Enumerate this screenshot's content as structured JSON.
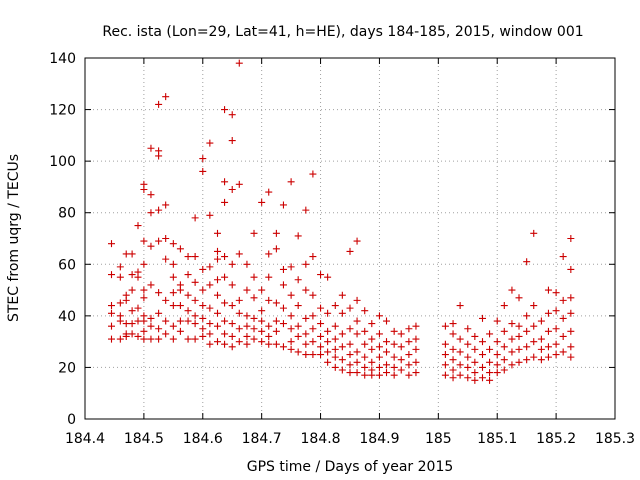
{
  "chart_data": {
    "type": "scatter",
    "title": "Rec. ista (Lon=29, Lat=41, h=HE), days 184-185, 2015, window 001",
    "xlabel": "GPS time / Days of year 2015",
    "ylabel": "STEC from uqrg / TECUs",
    "xlim": [
      184.4,
      185.3
    ],
    "ylim": [
      0,
      140
    ],
    "xticks": [
      "184.4",
      "184.5",
      "184.6",
      "184.7",
      "184.8",
      "184.9",
      "185",
      "185.1",
      "185.2",
      "185.3"
    ],
    "yticks": [
      "0",
      "20",
      "40",
      "60",
      "80",
      "100",
      "120",
      "140"
    ],
    "xtick_values": [
      184.4,
      184.5,
      184.6,
      184.7,
      184.8,
      184.9,
      185.0,
      185.1,
      185.2,
      185.3
    ],
    "ytick_values": [
      0,
      20,
      40,
      60,
      80,
      100,
      120,
      140
    ],
    "grid": true,
    "marker": "plus",
    "color": "#cc0000",
    "points": [
      [
        184.445,
        68
      ],
      [
        184.445,
        56
      ],
      [
        184.445,
        44
      ],
      [
        184.445,
        41
      ],
      [
        184.445,
        36
      ],
      [
        184.445,
        31
      ],
      [
        184.46,
        59
      ],
      [
        184.46,
        55
      ],
      [
        184.46,
        45
      ],
      [
        184.46,
        40
      ],
      [
        184.46,
        38
      ],
      [
        184.46,
        31
      ],
      [
        184.47,
        64
      ],
      [
        184.47,
        48
      ],
      [
        184.47,
        46
      ],
      [
        184.47,
        37
      ],
      [
        184.47,
        33
      ],
      [
        184.47,
        32
      ],
      [
        184.48,
        64
      ],
      [
        184.48,
        56
      ],
      [
        184.48,
        50
      ],
      [
        184.48,
        42
      ],
      [
        184.48,
        37
      ],
      [
        184.48,
        33
      ],
      [
        184.49,
        75
      ],
      [
        184.49,
        57
      ],
      [
        184.49,
        55
      ],
      [
        184.49,
        43
      ],
      [
        184.49,
        38
      ],
      [
        184.49,
        32
      ],
      [
        184.5,
        91
      ],
      [
        184.5,
        89
      ],
      [
        184.5,
        69
      ],
      [
        184.5,
        60
      ],
      [
        184.5,
        50
      ],
      [
        184.5,
        47
      ],
      [
        184.5,
        40
      ],
      [
        184.5,
        38
      ],
      [
        184.5,
        34
      ],
      [
        184.5,
        31
      ],
      [
        184.512,
        105
      ],
      [
        184.512,
        87
      ],
      [
        184.512,
        80
      ],
      [
        184.512,
        67
      ],
      [
        184.512,
        52
      ],
      [
        184.512,
        39
      ],
      [
        184.512,
        36
      ],
      [
        184.512,
        31
      ],
      [
        184.525,
        122
      ],
      [
        184.525,
        104
      ],
      [
        184.525,
        102
      ],
      [
        184.525,
        81
      ],
      [
        184.525,
        69
      ],
      [
        184.525,
        49
      ],
      [
        184.525,
        41
      ],
      [
        184.525,
        35
      ],
      [
        184.525,
        31
      ],
      [
        184.537,
        125
      ],
      [
        184.537,
        83
      ],
      [
        184.537,
        70
      ],
      [
        184.537,
        62
      ],
      [
        184.537,
        46
      ],
      [
        184.537,
        38
      ],
      [
        184.537,
        33
      ],
      [
        184.55,
        68
      ],
      [
        184.55,
        60
      ],
      [
        184.55,
        55
      ],
      [
        184.55,
        49
      ],
      [
        184.55,
        44
      ],
      [
        184.55,
        36
      ],
      [
        184.55,
        31
      ],
      [
        184.562,
        66
      ],
      [
        184.562,
        52
      ],
      [
        184.562,
        50
      ],
      [
        184.562,
        44
      ],
      [
        184.562,
        38
      ],
      [
        184.562,
        34
      ],
      [
        184.575,
        63
      ],
      [
        184.575,
        56
      ],
      [
        184.575,
        48
      ],
      [
        184.575,
        42
      ],
      [
        184.575,
        38
      ],
      [
        184.575,
        31
      ],
      [
        184.587,
        78
      ],
      [
        184.587,
        63
      ],
      [
        184.587,
        53
      ],
      [
        184.587,
        46
      ],
      [
        184.587,
        40
      ],
      [
        184.587,
        37
      ],
      [
        184.587,
        31
      ],
      [
        184.6,
        101
      ],
      [
        184.6,
        96
      ],
      [
        184.6,
        58
      ],
      [
        184.6,
        50
      ],
      [
        184.6,
        44
      ],
      [
        184.6,
        39
      ],
      [
        184.6,
        35
      ],
      [
        184.6,
        32
      ],
      [
        184.612,
        107
      ],
      [
        184.612,
        79
      ],
      [
        184.612,
        59
      ],
      [
        184.612,
        52
      ],
      [
        184.612,
        43
      ],
      [
        184.612,
        37
      ],
      [
        184.612,
        33
      ],
      [
        184.612,
        29
      ],
      [
        184.625,
        72
      ],
      [
        184.625,
        65
      ],
      [
        184.625,
        62
      ],
      [
        184.625,
        54
      ],
      [
        184.625,
        48
      ],
      [
        184.625,
        41
      ],
      [
        184.625,
        36
      ],
      [
        184.625,
        30
      ],
      [
        184.637,
        120
      ],
      [
        184.637,
        92
      ],
      [
        184.637,
        84
      ],
      [
        184.637,
        63
      ],
      [
        184.637,
        55
      ],
      [
        184.637,
        45
      ],
      [
        184.637,
        38
      ],
      [
        184.637,
        33
      ],
      [
        184.637,
        29
      ],
      [
        184.65,
        118
      ],
      [
        184.65,
        108
      ],
      [
        184.65,
        89
      ],
      [
        184.65,
        60
      ],
      [
        184.65,
        52
      ],
      [
        184.65,
        44
      ],
      [
        184.65,
        37
      ],
      [
        184.65,
        32
      ],
      [
        184.65,
        28
      ],
      [
        184.662,
        138
      ],
      [
        184.662,
        91
      ],
      [
        184.662,
        64
      ],
      [
        184.662,
        46
      ],
      [
        184.662,
        41
      ],
      [
        184.662,
        35
      ],
      [
        184.662,
        30
      ],
      [
        184.675,
        60
      ],
      [
        184.675,
        50
      ],
      [
        184.675,
        40
      ],
      [
        184.675,
        36
      ],
      [
        184.675,
        32
      ],
      [
        184.675,
        29
      ],
      [
        184.687,
        72
      ],
      [
        184.687,
        55
      ],
      [
        184.687,
        47
      ],
      [
        184.687,
        39
      ],
      [
        184.687,
        35
      ],
      [
        184.687,
        31
      ],
      [
        184.7,
        84
      ],
      [
        184.7,
        50
      ],
      [
        184.7,
        42
      ],
      [
        184.7,
        38
      ],
      [
        184.7,
        34
      ],
      [
        184.7,
        30
      ],
      [
        184.712,
        88
      ],
      [
        184.712,
        64
      ],
      [
        184.712,
        55
      ],
      [
        184.712,
        46
      ],
      [
        184.712,
        36
      ],
      [
        184.712,
        32
      ],
      [
        184.712,
        29
      ],
      [
        184.725,
        72
      ],
      [
        184.725,
        66
      ],
      [
        184.725,
        45
      ],
      [
        184.725,
        38
      ],
      [
        184.725,
        34
      ],
      [
        184.725,
        29
      ],
      [
        184.737,
        83
      ],
      [
        184.737,
        58
      ],
      [
        184.737,
        52
      ],
      [
        184.737,
        43
      ],
      [
        184.737,
        37
      ],
      [
        184.737,
        28
      ],
      [
        184.75,
        92
      ],
      [
        184.75,
        59
      ],
      [
        184.75,
        48
      ],
      [
        184.75,
        40
      ],
      [
        184.75,
        35
      ],
      [
        184.75,
        30
      ],
      [
        184.75,
        27
      ],
      [
        184.762,
        71
      ],
      [
        184.762,
        54
      ],
      [
        184.762,
        44
      ],
      [
        184.762,
        36
      ],
      [
        184.762,
        32
      ],
      [
        184.762,
        26
      ],
      [
        184.775,
        81
      ],
      [
        184.775,
        60
      ],
      [
        184.775,
        50
      ],
      [
        184.775,
        39
      ],
      [
        184.775,
        33
      ],
      [
        184.775,
        29
      ],
      [
        184.775,
        25
      ],
      [
        184.787,
        95
      ],
      [
        184.787,
        63
      ],
      [
        184.787,
        48
      ],
      [
        184.787,
        40
      ],
      [
        184.787,
        35
      ],
      [
        184.787,
        30
      ],
      [
        184.787,
        25
      ],
      [
        184.8,
        56
      ],
      [
        184.8,
        43
      ],
      [
        184.8,
        37
      ],
      [
        184.8,
        32
      ],
      [
        184.8,
        28
      ],
      [
        184.8,
        25
      ],
      [
        184.812,
        55
      ],
      [
        184.812,
        41
      ],
      [
        184.812,
        34
      ],
      [
        184.812,
        30
      ],
      [
        184.812,
        26
      ],
      [
        184.812,
        22
      ],
      [
        184.825,
        44
      ],
      [
        184.825,
        36
      ],
      [
        184.825,
        31
      ],
      [
        184.825,
        27
      ],
      [
        184.825,
        24
      ],
      [
        184.825,
        20
      ],
      [
        184.837,
        48
      ],
      [
        184.837,
        41
      ],
      [
        184.837,
        33
      ],
      [
        184.837,
        28
      ],
      [
        184.837,
        23
      ],
      [
        184.837,
        19
      ],
      [
        184.85,
        65
      ],
      [
        184.85,
        43
      ],
      [
        184.85,
        35
      ],
      [
        184.85,
        29
      ],
      [
        184.85,
        25
      ],
      [
        184.85,
        21
      ],
      [
        184.85,
        18
      ],
      [
        184.862,
        69
      ],
      [
        184.862,
        46
      ],
      [
        184.862,
        38
      ],
      [
        184.862,
        33
      ],
      [
        184.862,
        26
      ],
      [
        184.862,
        22
      ],
      [
        184.862,
        18
      ],
      [
        184.875,
        42
      ],
      [
        184.875,
        34
      ],
      [
        184.875,
        29
      ],
      [
        184.875,
        24
      ],
      [
        184.875,
        20
      ],
      [
        184.875,
        17
      ],
      [
        184.887,
        37
      ],
      [
        184.887,
        31
      ],
      [
        184.887,
        27
      ],
      [
        184.887,
        22
      ],
      [
        184.887,
        19
      ],
      [
        184.887,
        17
      ],
      [
        184.9,
        40
      ],
      [
        184.9,
        33
      ],
      [
        184.9,
        28
      ],
      [
        184.9,
        24
      ],
      [
        184.9,
        20
      ],
      [
        184.9,
        17
      ],
      [
        184.912,
        38
      ],
      [
        184.912,
        30
      ],
      [
        184.912,
        26
      ],
      [
        184.912,
        21
      ],
      [
        184.912,
        18
      ],
      [
        184.925,
        34
      ],
      [
        184.925,
        29
      ],
      [
        184.925,
        24
      ],
      [
        184.925,
        20
      ],
      [
        184.925,
        17
      ],
      [
        184.937,
        33
      ],
      [
        184.937,
        28
      ],
      [
        184.937,
        23
      ],
      [
        184.937,
        19
      ],
      [
        184.95,
        35
      ],
      [
        184.95,
        30
      ],
      [
        184.95,
        25
      ],
      [
        184.95,
        21
      ],
      [
        184.95,
        17
      ],
      [
        184.962,
        36
      ],
      [
        184.962,
        31
      ],
      [
        184.962,
        27
      ],
      [
        184.962,
        22
      ],
      [
        184.962,
        18
      ],
      [
        185.012,
        36
      ],
      [
        185.012,
        29
      ],
      [
        185.012,
        25
      ],
      [
        185.012,
        21
      ],
      [
        185.012,
        17
      ],
      [
        185.025,
        37
      ],
      [
        185.025,
        33
      ],
      [
        185.025,
        27
      ],
      [
        185.025,
        23
      ],
      [
        185.025,
        19
      ],
      [
        185.025,
        16
      ],
      [
        185.037,
        44
      ],
      [
        185.037,
        31
      ],
      [
        185.037,
        26
      ],
      [
        185.037,
        21
      ],
      [
        185.037,
        17
      ],
      [
        185.05,
        35
      ],
      [
        185.05,
        29
      ],
      [
        185.05,
        24
      ],
      [
        185.05,
        20
      ],
      [
        185.05,
        16
      ],
      [
        185.062,
        32
      ],
      [
        185.062,
        27
      ],
      [
        185.062,
        22
      ],
      [
        185.062,
        18
      ],
      [
        185.062,
        15
      ],
      [
        185.075,
        39
      ],
      [
        185.075,
        30
      ],
      [
        185.075,
        25
      ],
      [
        185.075,
        20
      ],
      [
        185.075,
        16
      ],
      [
        185.087,
        33
      ],
      [
        185.087,
        27
      ],
      [
        185.087,
        22
      ],
      [
        185.087,
        18
      ],
      [
        185.087,
        15
      ],
      [
        185.1,
        38
      ],
      [
        185.1,
        30
      ],
      [
        185.1,
        25
      ],
      [
        185.1,
        21
      ],
      [
        185.1,
        18
      ],
      [
        185.112,
        44
      ],
      [
        185.112,
        34
      ],
      [
        185.112,
        28
      ],
      [
        185.112,
        23
      ],
      [
        185.112,
        19
      ],
      [
        185.125,
        50
      ],
      [
        185.125,
        37
      ],
      [
        185.125,
        31
      ],
      [
        185.125,
        26
      ],
      [
        185.125,
        21
      ],
      [
        185.137,
        47
      ],
      [
        185.137,
        36
      ],
      [
        185.137,
        32
      ],
      [
        185.137,
        27
      ],
      [
        185.137,
        22
      ],
      [
        185.15,
        61
      ],
      [
        185.15,
        40
      ],
      [
        185.15,
        34
      ],
      [
        185.15,
        28
      ],
      [
        185.15,
        23
      ],
      [
        185.162,
        72
      ],
      [
        185.162,
        44
      ],
      [
        185.162,
        36
      ],
      [
        185.162,
        30
      ],
      [
        185.162,
        24
      ],
      [
        185.175,
        38
      ],
      [
        185.175,
        31
      ],
      [
        185.175,
        27
      ],
      [
        185.175,
        23
      ],
      [
        185.187,
        50
      ],
      [
        185.187,
        41
      ],
      [
        185.187,
        34
      ],
      [
        185.187,
        28
      ],
      [
        185.187,
        24
      ],
      [
        185.2,
        49
      ],
      [
        185.2,
        42
      ],
      [
        185.2,
        35
      ],
      [
        185.2,
        29
      ],
      [
        185.2,
        25
      ],
      [
        185.212,
        63
      ],
      [
        185.212,
        46
      ],
      [
        185.212,
        39
      ],
      [
        185.212,
        32
      ],
      [
        185.212,
        26
      ],
      [
        185.225,
        70
      ],
      [
        185.225,
        58
      ],
      [
        185.225,
        47
      ],
      [
        185.225,
        41
      ],
      [
        185.225,
        34
      ],
      [
        185.225,
        28
      ],
      [
        185.225,
        24
      ]
    ]
  }
}
